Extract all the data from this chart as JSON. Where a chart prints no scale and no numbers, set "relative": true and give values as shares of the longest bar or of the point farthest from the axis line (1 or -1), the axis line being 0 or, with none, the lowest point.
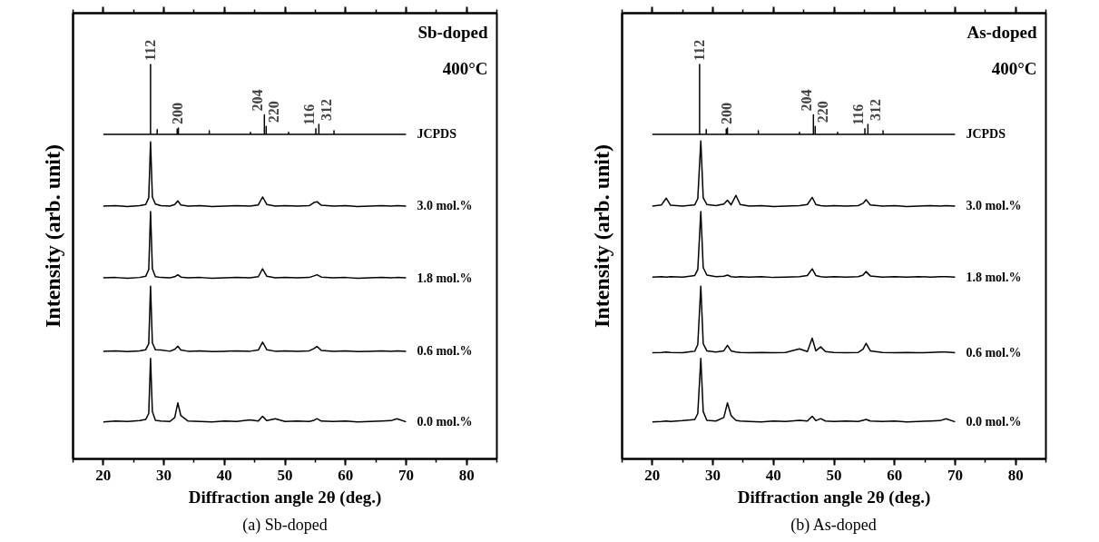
{
  "chart_data": [
    {
      "type": "line",
      "relative": true,
      "title": "(a) Sb-doped",
      "xlabel": "Diffraction angle 2θ (deg.)",
      "ylabel": "Intensity (arb. unit)",
      "xlim": [
        15,
        85
      ],
      "xticks": [
        20,
        30,
        40,
        50,
        60,
        70,
        80
      ],
      "tick_labels": "x",
      "annotations": [
        "Sb-doped",
        "400°C",
        {
          "text": "112",
          "x": 27.8,
          "y": 1.0
        },
        {
          "text": "200",
          "x": 32.3,
          "y": 0.839
        },
        {
          "text": "204",
          "x": 46.6,
          "y": 0.872
        },
        {
          "text": "220",
          "x": 46.9,
          "y": 0.843
        },
        {
          "text": "116",
          "x": 55.1,
          "y": 0.837
        },
        {
          "text": "312",
          "x": 55.6,
          "y": 0.848
        }
      ],
      "x": [
        20,
        22,
        24,
        26,
        27,
        27.5,
        27.8,
        28.1,
        28.6,
        29.5,
        31,
        31.8,
        32.3,
        32.8,
        34,
        36,
        38,
        40,
        42,
        44.2,
        45.6,
        46.3,
        47,
        48.4,
        50,
        52,
        54,
        54.8,
        55.3,
        56,
        58,
        60,
        62,
        64,
        66,
        67.5,
        68.5,
        70
      ],
      "series": [
        {
          "name": "JCPDS",
          "color": "#000000",
          "x": [
            20,
            27.8,
            27.8,
            27.8,
            28.9,
            28.9,
            28.9,
            32.2,
            32.2,
            32.2,
            32.4,
            32.4,
            32.4,
            37.5,
            37.5,
            37.5,
            44.3,
            44.3,
            44.3,
            46.6,
            46.6,
            46.6,
            46.9,
            46.9,
            46.9,
            50.6,
            50.6,
            50.6,
            55.1,
            55.1,
            55.1,
            55.6,
            55.6,
            55.6,
            58.1,
            58.1,
            58.1,
            70
          ],
          "values": [
            0.823,
            0.823,
            1.0,
            0.823,
            0.823,
            0.835,
            0.823,
            0.823,
            0.836,
            0.823,
            0.823,
            0.839,
            0.823,
            0.823,
            0.832,
            0.823,
            0.823,
            0.828,
            0.823,
            0.823,
            0.872,
            0.823,
            0.823,
            0.843,
            0.823,
            0.823,
            0.828,
            0.823,
            0.823,
            0.837,
            0.823,
            0.823,
            0.848,
            0.823,
            0.823,
            0.832,
            0.823,
            0.823
          ]
        },
        {
          "name": "3.0 mol.%",
          "color": "#000000",
          "values": [
            0.641,
            0.642,
            0.64,
            0.642,
            0.645,
            0.662,
            0.804,
            0.664,
            0.646,
            0.642,
            0.641,
            0.645,
            0.654,
            0.644,
            0.641,
            0.642,
            0.64,
            0.641,
            0.642,
            0.641,
            0.644,
            0.664,
            0.645,
            0.641,
            0.642,
            0.641,
            0.642,
            0.65,
            0.652,
            0.643,
            0.641,
            0.642,
            0.64,
            0.641,
            0.642,
            0.641,
            0.642,
            0.641
          ]
        },
        {
          "name": "1.8 mol.%",
          "color": "#000000",
          "values": [
            0.459,
            0.46,
            0.458,
            0.46,
            0.463,
            0.48,
            0.627,
            0.482,
            0.462,
            0.46,
            0.459,
            0.462,
            0.467,
            0.461,
            0.459,
            0.46,
            0.458,
            0.459,
            0.46,
            0.459,
            0.462,
            0.482,
            0.463,
            0.459,
            0.46,
            0.459,
            0.46,
            0.464,
            0.467,
            0.461,
            0.459,
            0.46,
            0.458,
            0.459,
            0.46,
            0.459,
            0.46,
            0.459
          ]
        },
        {
          "name": "0.6 mol.%",
          "color": "#000000",
          "values": [
            0.273,
            0.274,
            0.272,
            0.274,
            0.277,
            0.292,
            0.438,
            0.294,
            0.277,
            0.276,
            0.273,
            0.278,
            0.286,
            0.276,
            0.273,
            0.274,
            0.272,
            0.273,
            0.274,
            0.273,
            0.276,
            0.296,
            0.277,
            0.273,
            0.274,
            0.273,
            0.274,
            0.28,
            0.285,
            0.275,
            0.273,
            0.274,
            0.272,
            0.273,
            0.274,
            0.273,
            0.274,
            0.273
          ]
        },
        {
          "name": "0.0 mol.%",
          "color": "#000000",
          "values": [
            0.094,
            0.096,
            0.095,
            0.097,
            0.1,
            0.115,
            0.255,
            0.12,
            0.098,
            0.096,
            0.095,
            0.105,
            0.142,
            0.11,
            0.096,
            0.095,
            0.094,
            0.096,
            0.095,
            0.099,
            0.096,
            0.108,
            0.097,
            0.102,
            0.095,
            0.096,
            0.095,
            0.098,
            0.102,
            0.096,
            0.095,
            0.096,
            0.094,
            0.095,
            0.096,
            0.097,
            0.102,
            0.094
          ]
        }
      ]
    },
    {
      "type": "line",
      "relative": true,
      "title": "(b) As-doped",
      "xlabel": "Diffraction angle 2θ (deg.)",
      "ylabel": "Intensity (arb. unit)",
      "xlim": [
        15,
        85
      ],
      "xticks": [
        20,
        30,
        40,
        50,
        60,
        70,
        80
      ],
      "tick_labels": "x",
      "annotations": [
        "As-doped",
        "400°C",
        {
          "text": "112",
          "x": 27.8,
          "y": 1.0
        },
        {
          "text": "200",
          "x": 32.3,
          "y": 0.839
        },
        {
          "text": "204",
          "x": 46.6,
          "y": 0.872
        },
        {
          "text": "220",
          "x": 46.9,
          "y": 0.843
        },
        {
          "text": "116",
          "x": 55.1,
          "y": 0.837
        },
        {
          "text": "312",
          "x": 55.6,
          "y": 0.848
        }
      ],
      "x": [
        20,
        21.5,
        22.3,
        23,
        25,
        27,
        27.5,
        28.0,
        28.4,
        29,
        30.5,
        31.8,
        32.4,
        33,
        33.8,
        34.5,
        36,
        38,
        40,
        42,
        44.3,
        45.6,
        46.4,
        47,
        47.8,
        48.6,
        50,
        52,
        54,
        54.8,
        55.3,
        56,
        58,
        60,
        62,
        64,
        66,
        67.5,
        68.5,
        70
      ],
      "series": [
        {
          "name": "JCPDS",
          "color": "#000000",
          "x": [
            20,
            27.8,
            27.8,
            27.8,
            28.9,
            28.9,
            28.9,
            32.2,
            32.2,
            32.2,
            32.4,
            32.4,
            32.4,
            37.5,
            37.5,
            37.5,
            44.3,
            44.3,
            44.3,
            46.6,
            46.6,
            46.6,
            46.9,
            46.9,
            46.9,
            50.6,
            50.6,
            50.6,
            55.1,
            55.1,
            55.1,
            55.6,
            55.6,
            55.6,
            58.1,
            58.1,
            58.1,
            70
          ],
          "values": [
            0.823,
            0.823,
            1.0,
            0.823,
            0.823,
            0.835,
            0.823,
            0.823,
            0.836,
            0.823,
            0.823,
            0.839,
            0.823,
            0.823,
            0.832,
            0.823,
            0.823,
            0.828,
            0.823,
            0.823,
            0.872,
            0.823,
            0.823,
            0.843,
            0.823,
            0.823,
            0.828,
            0.823,
            0.823,
            0.837,
            0.823,
            0.823,
            0.848,
            0.823,
            0.823,
            0.832,
            0.823,
            0.823
          ]
        },
        {
          "name": "3.0 mol.%",
          "color": "#000000",
          "values": [
            0.641,
            0.644,
            0.661,
            0.643,
            0.641,
            0.644,
            0.66,
            0.806,
            0.662,
            0.645,
            0.642,
            0.646,
            0.656,
            0.644,
            0.668,
            0.645,
            0.641,
            0.642,
            0.64,
            0.641,
            0.642,
            0.645,
            0.663,
            0.645,
            0.642,
            0.641,
            0.642,
            0.641,
            0.642,
            0.648,
            0.657,
            0.644,
            0.641,
            0.642,
            0.64,
            0.641,
            0.642,
            0.641,
            0.642,
            0.641
          ]
        },
        {
          "name": "1.8 mol.%",
          "color": "#000000",
          "values": [
            0.461,
            0.462,
            0.461,
            0.462,
            0.461,
            0.465,
            0.48,
            0.627,
            0.485,
            0.466,
            0.462,
            0.463,
            0.466,
            0.462,
            0.461,
            0.462,
            0.461,
            0.462,
            0.46,
            0.461,
            0.462,
            0.465,
            0.482,
            0.465,
            0.462,
            0.461,
            0.462,
            0.461,
            0.462,
            0.466,
            0.475,
            0.464,
            0.461,
            0.462,
            0.461,
            0.462,
            0.461,
            0.462,
            0.462,
            0.461
          ]
        },
        {
          "name": "0.6 mol.%",
          "color": "#000000",
          "values": [
            0.269,
            0.27,
            0.271,
            0.27,
            0.269,
            0.273,
            0.29,
            0.438,
            0.292,
            0.274,
            0.271,
            0.274,
            0.288,
            0.274,
            0.271,
            0.27,
            0.269,
            0.27,
            0.269,
            0.27,
            0.279,
            0.272,
            0.306,
            0.274,
            0.284,
            0.272,
            0.27,
            0.269,
            0.27,
            0.278,
            0.293,
            0.274,
            0.27,
            0.269,
            0.27,
            0.269,
            0.27,
            0.271,
            0.271,
            0.269
          ]
        },
        {
          "name": "0.0 mol.%",
          "color": "#000000",
          "values": [
            0.094,
            0.095,
            0.096,
            0.095,
            0.097,
            0.1,
            0.115,
            0.255,
            0.12,
            0.098,
            0.096,
            0.105,
            0.142,
            0.11,
            0.098,
            0.096,
            0.095,
            0.094,
            0.096,
            0.095,
            0.098,
            0.096,
            0.108,
            0.097,
            0.102,
            0.096,
            0.095,
            0.096,
            0.095,
            0.098,
            0.1,
            0.096,
            0.095,
            0.096,
            0.094,
            0.095,
            0.096,
            0.097,
            0.102,
            0.094
          ]
        }
      ]
    }
  ]
}
